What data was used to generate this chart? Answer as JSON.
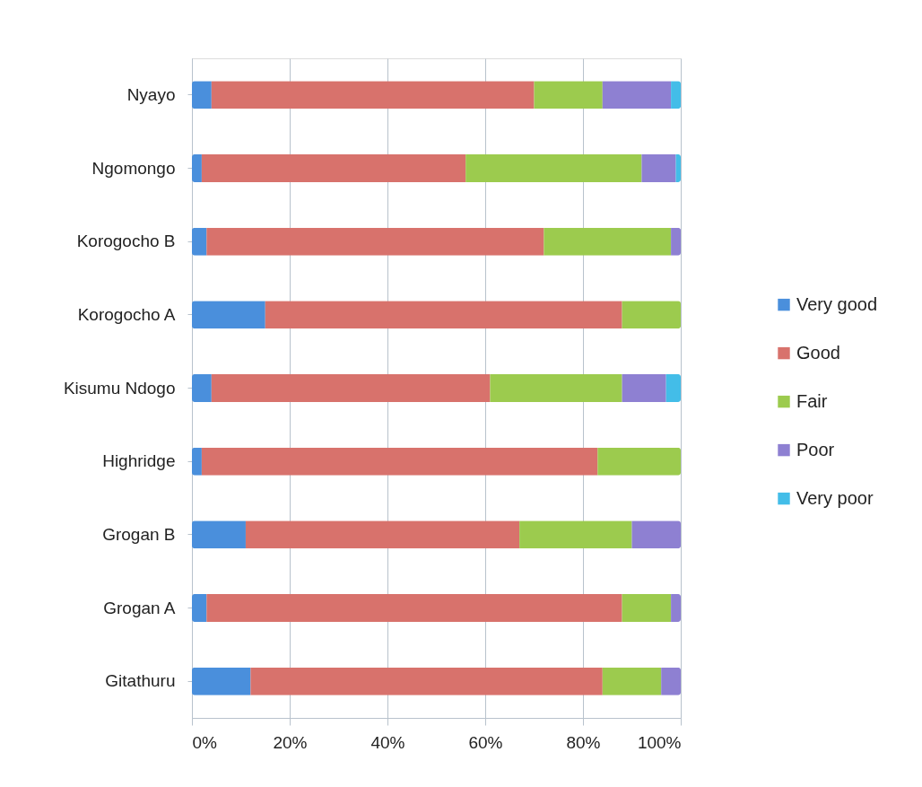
{
  "chart_data": {
    "type": "bar",
    "orientation": "horizontal",
    "stacked": true,
    "categories": [
      "Nyayo",
      "Ngomongo",
      "Korogocho B",
      "Korogocho A",
      "Kisumu Ndogo",
      "Highridge",
      "Grogan B",
      "Grogan A",
      "Gitathuru"
    ],
    "series": [
      {
        "name": "Very good",
        "color": "#4a8fdc",
        "values": [
          4,
          2,
          3,
          15,
          4,
          2,
          11,
          3,
          12
        ]
      },
      {
        "name": "Good",
        "color": "#d8726c",
        "values": [
          66,
          54,
          69,
          73,
          57,
          81,
          56,
          85,
          72
        ]
      },
      {
        "name": "Fair",
        "color": "#9ccb4e",
        "values": [
          14,
          36,
          26,
          12,
          27,
          17,
          23,
          10,
          12
        ]
      },
      {
        "name": "Poor",
        "color": "#8e80d2",
        "values": [
          14,
          7,
          2,
          null,
          9,
          null,
          10,
          2,
          4
        ]
      },
      {
        "name": "Very poor",
        "color": "#43bde8",
        "values": [
          2,
          1,
          null,
          null,
          3,
          null,
          null,
          null,
          null
        ]
      }
    ],
    "xlim": [
      0,
      100
    ],
    "xticks": [
      {
        "value": 0,
        "label": "0%"
      },
      {
        "value": 20,
        "label": "20%"
      },
      {
        "value": 40,
        "label": "40%"
      },
      {
        "value": 60,
        "label": "60%"
      },
      {
        "value": 80,
        "label": "80%"
      },
      {
        "value": 100,
        "label": "100%"
      }
    ],
    "grid": "x",
    "legend": "right"
  }
}
